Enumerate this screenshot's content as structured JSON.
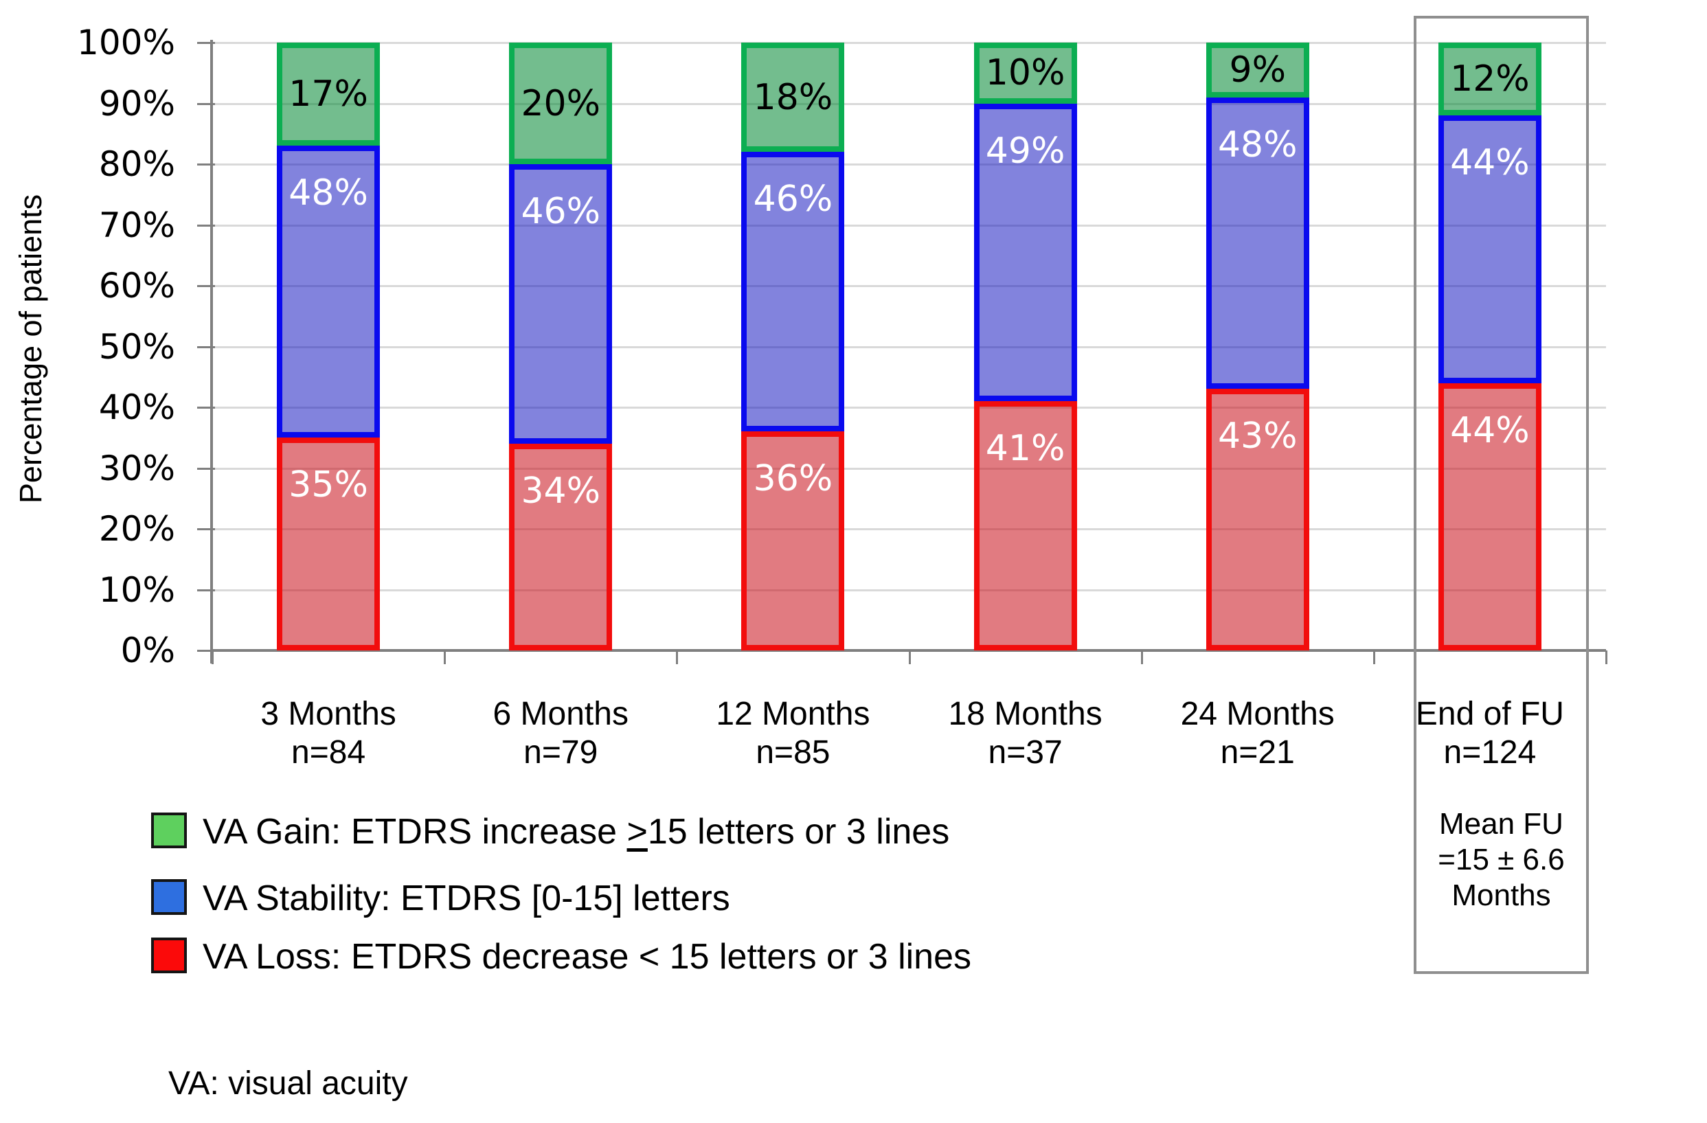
{
  "chart_data": {
    "type": "bar",
    "stacked": true,
    "title": "",
    "ylabel": "Percentage of patients",
    "ylim": [
      0,
      100
    ],
    "ytick_step": 10,
    "ytick_labels": [
      "0%",
      "10%",
      "20%",
      "30%",
      "40%",
      "50%",
      "60%",
      "70%",
      "80%",
      "90%",
      "100%"
    ],
    "grid": true,
    "categories": [
      {
        "label": "3 Months",
        "n": "n=84"
      },
      {
        "label": "6 Months",
        "n": "n=79"
      },
      {
        "label": "12 Months",
        "n": "n=85"
      },
      {
        "label": "18 Months",
        "n": "n=37"
      },
      {
        "label": "24 Months",
        "n": "n=21"
      },
      {
        "label": "End of FU",
        "n": "n=124"
      }
    ],
    "series": [
      {
        "name": "VA Loss",
        "values": [
          35,
          34,
          36,
          41,
          43,
          44
        ],
        "border_color": "#f20d0d",
        "fill_color": "rgba(200,15,25,0.55)",
        "label_color": "#ffffff"
      },
      {
        "name": "VA Stability",
        "values": [
          48,
          46,
          46,
          49,
          48,
          44
        ],
        "border_color": "#0a0aee",
        "fill_color": "rgba(15,18,190,0.52)",
        "label_color": "#ffffff"
      },
      {
        "name": "VA Gain",
        "values": [
          17,
          20,
          18,
          10,
          9,
          12
        ],
        "border_color": "#0cae52",
        "fill_color": "rgba(0,135,50,0.55)",
        "label_color": "#000000"
      }
    ],
    "annotation_box": {
      "column": "End of FU",
      "lines": [
        "Mean FU",
        "=15 ± 6.6",
        "Months"
      ]
    },
    "note": "VA: visual acuity"
  },
  "legend": {
    "items": [
      {
        "name": "VA Gain",
        "swatch": "#5ed05e",
        "label_pre": "VA Gain: ETDRS increase ",
        "label_geq": ">",
        "label_post": "15 letters or 3 lines"
      },
      {
        "name": "VA Stability",
        "swatch": "#2e6fe0",
        "label": "VA Stability: ETDRS [0-15] letters"
      },
      {
        "name": "VA Loss",
        "swatch": "#fb0a0a",
        "label": "VA Loss: ETDRS decrease < 15 letters or 3 lines"
      }
    ]
  }
}
